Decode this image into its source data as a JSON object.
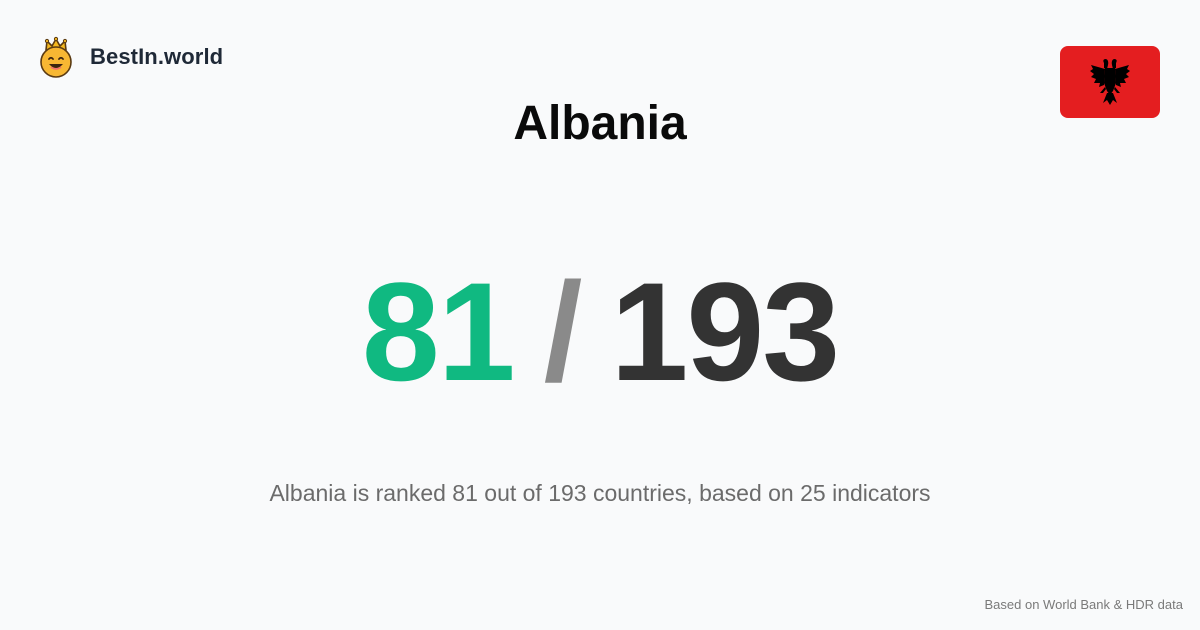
{
  "brand": {
    "name": "BestIn.world",
    "logo_icon": "crown-smiley-icon"
  },
  "country": {
    "name": "Albania",
    "flag_icon": "albania-flag-icon",
    "flag_color": "#e41e20"
  },
  "ranking": {
    "rank": "81",
    "separator": "/",
    "total": "193",
    "rank_color": "#10b981"
  },
  "summary": "Albania is ranked 81 out of 193 countries, based on 25 indicators",
  "source_note": "Based on World Bank & HDR data"
}
